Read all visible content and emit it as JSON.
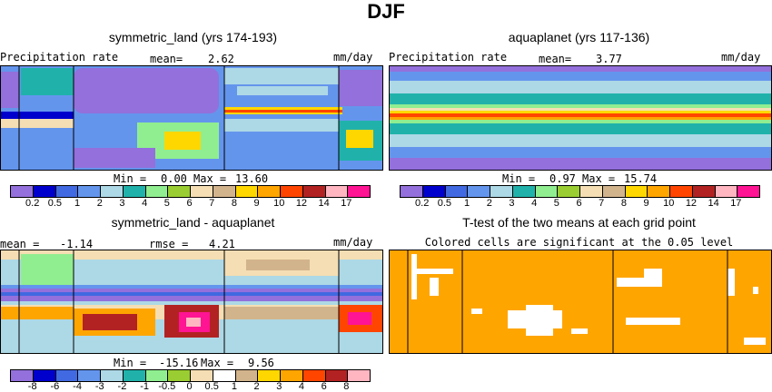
{
  "figure": {
    "title": "DJF"
  },
  "colors": {
    "precip_scale": [
      "#9370db",
      "#0000cd",
      "#4169e1",
      "#6495ed",
      "#add8e6",
      "#20b2aa",
      "#90ee90",
      "#9acd32",
      "#f5deb3",
      "#d2b48c",
      "#ffd700",
      "#ffa500",
      "#ff4500",
      "#b22222",
      "#ffb6c1",
      "#ff1493"
    ],
    "diff_scale": [
      "#9370db",
      "#0000cd",
      "#4169e1",
      "#6495ed",
      "#add8e6",
      "#20b2aa",
      "#90ee90",
      "#9acd32",
      "#f5deb3",
      "#ffffff",
      "#d2b48c",
      "#ffd700",
      "#ffa500",
      "#ff4500",
      "#b22222",
      "#ffb6c1",
      "#ff1493"
    ],
    "significant": "#ffa500"
  },
  "chart_data": [
    {
      "type": "heatmap",
      "title": "symmetric_land (yrs 174-193)",
      "variable_label": "Precipitation rate",
      "mean_label": "mean=",
      "mean_value": "2.62",
      "units": "mm/day",
      "min_label": "Min =",
      "min_value": "0.00",
      "max_label": "Max =",
      "max_value": "13.60",
      "colorbar_ticks": [
        "0.2",
        "0.5",
        "1",
        "2",
        "3",
        "4",
        "5",
        "6",
        "7",
        "8",
        "9",
        "10",
        "12",
        "14",
        "17"
      ]
    },
    {
      "type": "heatmap",
      "title": "aquaplanet (yrs 117-136)",
      "variable_label": "Precipitation rate",
      "mean_label": "mean=",
      "mean_value": "3.77",
      "units": "mm/day",
      "min_label": "Min =",
      "min_value": "0.97",
      "max_label": "Max =",
      "max_value": "15.74",
      "colorbar_ticks": [
        "0.2",
        "0.5",
        "1",
        "2",
        "3",
        "4",
        "5",
        "6",
        "7",
        "8",
        "9",
        "10",
        "12",
        "14",
        "17"
      ]
    },
    {
      "type": "heatmap",
      "title": "symmetric_land - aquaplanet",
      "mean_label": "mean =",
      "mean_value": "-1.14",
      "rmse_label": "rmse =",
      "rmse_value": "4.21",
      "units": "mm/day",
      "min_label": "Min =",
      "min_value": "-15.16",
      "max_label": "Max =",
      "max_value": "9.56",
      "colorbar_ticks": [
        "-8",
        "-6",
        "-4",
        "-3",
        "-2",
        "-1",
        "-0.5",
        "0",
        "0.5",
        "1",
        "2",
        "3",
        "4",
        "6",
        "8"
      ]
    },
    {
      "type": "heatmap",
      "title": "T-test of the two means at each grid point",
      "subtitle": "Colored cells are significant at the 0.05 level"
    }
  ]
}
